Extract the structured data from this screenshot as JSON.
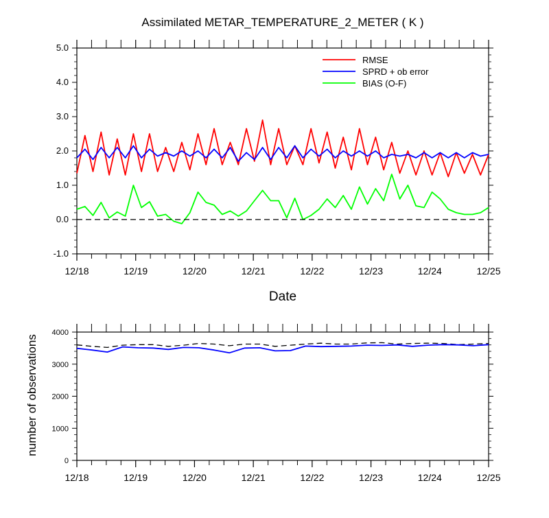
{
  "chart_data": [
    {
      "type": "line",
      "title": "Assimilated METAR_TEMPERATURE_2_METER ( K )",
      "xlabel": "Date",
      "ylabel": "",
      "x_ticks": [
        "12/18",
        "12/19",
        "12/20",
        "12/21",
        "12/22",
        "12/23",
        "12/24",
        "12/25"
      ],
      "x_range_days": [
        0,
        7
      ],
      "ylim": [
        -1.0,
        5.0
      ],
      "y_ticks": [
        "-1.0",
        "0.0",
        "1.0",
        "2.0",
        "3.0",
        "4.0",
        "5.0"
      ],
      "legend_position": "top-right",
      "series": [
        {
          "name": "RMSE",
          "color": "#ff0000",
          "values": [
            1.35,
            2.45,
            1.4,
            2.55,
            1.3,
            2.35,
            1.3,
            2.5,
            1.4,
            2.5,
            1.4,
            2.1,
            1.4,
            2.25,
            1.45,
            2.5,
            1.6,
            2.65,
            1.6,
            2.25,
            1.6,
            2.65,
            1.7,
            2.9,
            1.6,
            2.65,
            1.6,
            2.15,
            1.6,
            2.65,
            1.65,
            2.55,
            1.5,
            2.4,
            1.45,
            2.65,
            1.6,
            2.4,
            1.45,
            2.25,
            1.35,
            2.0,
            1.3,
            2.0,
            1.3,
            1.95,
            1.25,
            1.95,
            1.35,
            1.9,
            1.3,
            1.9
          ]
        },
        {
          "name": "SPRD + ob error",
          "color": "#0000ff",
          "values": [
            1.8,
            2.05,
            1.75,
            2.1,
            1.8,
            2.1,
            1.8,
            2.15,
            1.8,
            2.05,
            1.85,
            1.95,
            1.85,
            2.0,
            1.85,
            2.0,
            1.8,
            2.05,
            1.8,
            2.1,
            1.7,
            1.95,
            1.75,
            2.1,
            1.75,
            2.1,
            1.8,
            2.15,
            1.8,
            2.05,
            1.85,
            2.05,
            1.8,
            2.0,
            1.85,
            2.0,
            1.85,
            2.0,
            1.8,
            1.9,
            1.85,
            1.9,
            1.8,
            1.95,
            1.8,
            1.95,
            1.8,
            1.95,
            1.8,
            1.95,
            1.85,
            1.9
          ]
        },
        {
          "name": "BIAS (O-F)",
          "color": "#00ff00",
          "values": [
            0.3,
            0.38,
            0.12,
            0.5,
            0.05,
            0.22,
            0.1,
            1.0,
            0.35,
            0.52,
            0.1,
            0.15,
            -0.05,
            -0.12,
            0.2,
            0.8,
            0.5,
            0.42,
            0.15,
            0.25,
            0.1,
            0.25,
            0.55,
            0.85,
            0.55,
            0.55,
            0.05,
            0.62,
            0.0,
            0.12,
            0.3,
            0.6,
            0.35,
            0.7,
            0.3,
            0.95,
            0.45,
            0.9,
            0.55,
            1.32,
            0.6,
            1.0,
            0.4,
            0.35,
            0.8,
            0.6,
            0.3,
            0.2,
            0.15,
            0.15,
            0.2,
            0.35
          ]
        },
        {
          "name": "",
          "color": "#000000",
          "style": "dashed",
          "constant": 0.0
        }
      ]
    },
    {
      "type": "line",
      "title": "",
      "xlabel": "",
      "ylabel": "number of observations",
      "x_ticks": [
        "12/18",
        "12/19",
        "12/20",
        "12/21",
        "12/22",
        "12/23",
        "12/24",
        "12/25"
      ],
      "x_range_days": [
        0,
        7
      ],
      "ylim": [
        0,
        4500
      ],
      "y_ticks": [
        "0",
        "1000",
        "2000",
        "3000",
        "4000"
      ],
      "series": [
        {
          "name": "",
          "color": "#000000",
          "style": "dashed",
          "values": [
            4050,
            4000,
            3960,
            4040,
            4060,
            4060,
            4000,
            4040,
            4100,
            4080,
            4020,
            4080,
            4080,
            4000,
            4040,
            4080,
            4110,
            4080,
            4080,
            4120,
            4130,
            4080,
            4100,
            4110,
            4100,
            4060,
            4080,
            4100
          ]
        },
        {
          "name": "",
          "color": "#0000ff",
          "style": "solid",
          "values": [
            3930,
            3870,
            3800,
            3980,
            3950,
            3940,
            3890,
            3960,
            3950,
            3870,
            3770,
            3940,
            3950,
            3840,
            3850,
            4010,
            3990,
            4000,
            4010,
            4040,
            4030,
            4050,
            4000,
            4040,
            4060,
            4050,
            4020,
            4060
          ]
        }
      ]
    }
  ]
}
